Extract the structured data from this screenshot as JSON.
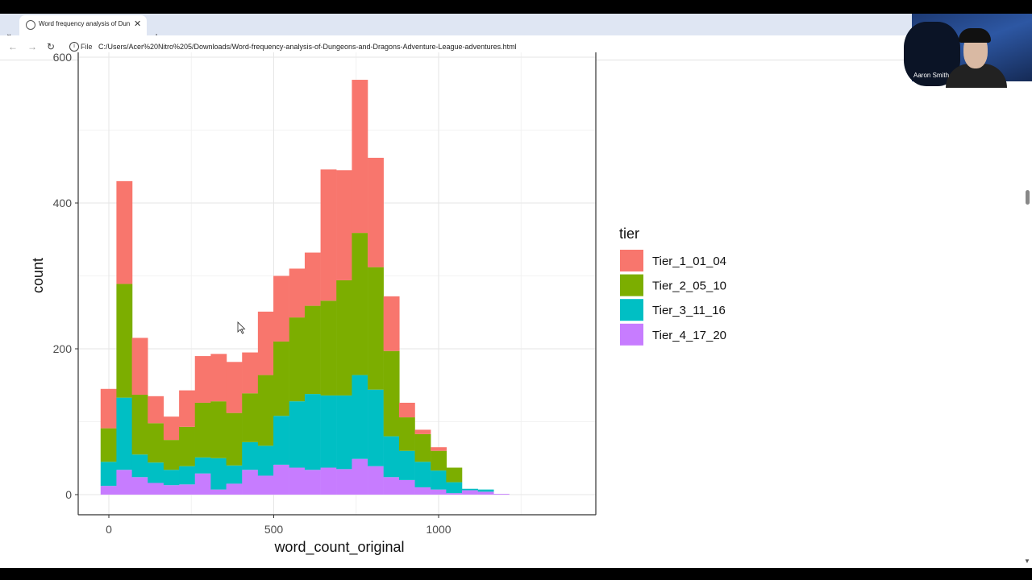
{
  "browser": {
    "tab_title": "Word frequency analysis of Dun",
    "file_label": "File",
    "url": "C:/Users/Acer%20Nitro%205/Downloads/Word-frequency-analysis-of-Dungeons-and-Dragons-Adventure-League-adventures.html"
  },
  "webcam": {
    "name": "Aaron Smith"
  },
  "chart_data": {
    "type": "bar",
    "stacked": true,
    "xlabel": "word_count_original",
    "ylabel": "count",
    "x_ticks": [
      0,
      500,
      1000
    ],
    "y_ticks": [
      0,
      200,
      400
    ],
    "y_top_tick_partial": "600",
    "xlim": [
      -95,
      1475
    ],
    "ylim": [
      -20,
      600
    ],
    "bin_width": 47.6,
    "bin_starts": [
      -25,
      23,
      70,
      118,
      166,
      213,
      261,
      309,
      356,
      404,
      452,
      499,
      547,
      594,
      642,
      690,
      737,
      785,
      833,
      880,
      928,
      976,
      1023,
      1071,
      1119,
      1166,
      1214,
      1262,
      1309,
      1357
    ],
    "legend_title": "tier",
    "legend_position": "right",
    "grid": true,
    "series": [
      {
        "name": "Tier_1_01_04",
        "color": "#F8766D",
        "values": [
          54,
          141,
          78,
          37,
          32,
          50,
          64,
          65,
          70,
          56,
          87,
          90,
          67,
          73,
          180,
          151,
          210,
          150,
          75,
          20,
          6,
          5,
          0,
          0,
          0,
          0,
          0,
          0,
          0,
          0
        ]
      },
      {
        "name": "Tier_2_05_10",
        "color": "#7CAE00",
        "values": [
          46,
          156,
          82,
          54,
          41,
          54,
          75,
          78,
          72,
          67,
          97,
          102,
          115,
          121,
          130,
          158,
          195,
          168,
          117,
          46,
          38,
          27,
          20,
          0,
          0,
          0,
          0,
          0,
          0,
          0
        ]
      },
      {
        "name": "Tier_3_11_16",
        "color": "#00BFC4",
        "values": [
          33,
          99,
          31,
          28,
          21,
          25,
          22,
          43,
          25,
          38,
          41,
          67,
          91,
          104,
          99,
          101,
          115,
          105,
          56,
          40,
          35,
          26,
          15,
          2,
          3,
          0,
          0,
          0,
          0,
          0
        ]
      },
      {
        "name": "Tier_4_17_20",
        "color": "#C77CFF",
        "values": [
          12,
          34,
          24,
          16,
          13,
          14,
          29,
          7,
          15,
          34,
          26,
          41,
          37,
          34,
          37,
          35,
          49,
          39,
          24,
          20,
          10,
          7,
          2,
          6,
          4,
          1,
          0,
          0,
          0,
          0
        ]
      }
    ]
  }
}
